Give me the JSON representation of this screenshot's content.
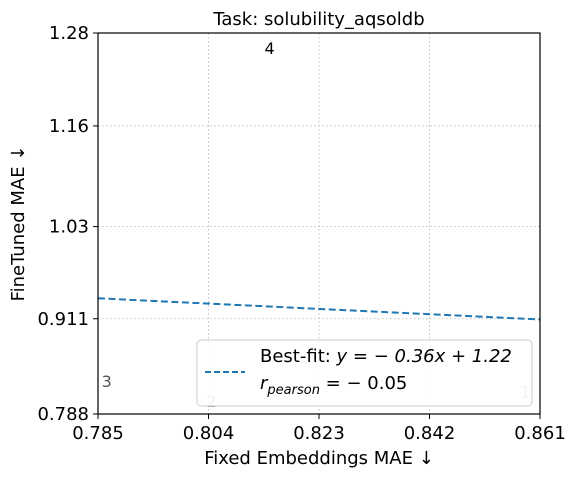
{
  "chart_data": {
    "type": "scatter",
    "title": "Task: solubility_aqsoldb",
    "xlabel": "Fixed Embeddings MAE ↓",
    "ylabel": "FineTuned MAE ↓",
    "xlim": [
      0.785,
      0.861
    ],
    "ylim": [
      0.788,
      1.28
    ],
    "x_ticks": [
      "0.785",
      "0.804",
      "0.823",
      "0.842",
      "0.861"
    ],
    "y_ticks": [
      "0.788",
      "0.911",
      "1.03",
      "1.16",
      "1.28"
    ],
    "grid": true,
    "points": [
      {
        "label": "1",
        "x": 0.8585,
        "y": 0.815,
        "color": "#aaaaaa"
      },
      {
        "label": "2",
        "x": 0.8045,
        "y": 0.803,
        "color": "#888888"
      },
      {
        "label": "3",
        "x": 0.7865,
        "y": 0.829,
        "color": "#555555"
      },
      {
        "label": "4",
        "x": 0.8145,
        "y": 1.259,
        "color": "#000000"
      }
    ],
    "fit_line": {
      "slope": -0.36,
      "intercept": 1.22,
      "color": "#1f77b4",
      "style": "dashed"
    },
    "legend": {
      "placement": "lower right",
      "fit_prefix": "Best-fit: ",
      "fit_formula": "y = − 0.36x + 1.22",
      "r_symbol": "r",
      "r_sub": "pearson",
      "r_value": " = − 0.05"
    }
  }
}
